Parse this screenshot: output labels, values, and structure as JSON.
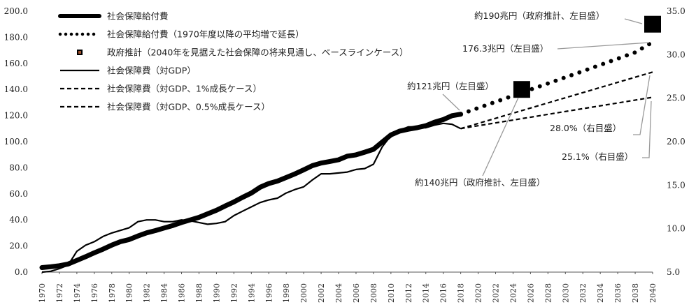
{
  "chart_data": {
    "type": "line",
    "x_range": [
      1970,
      2040
    ],
    "x_ticks": [
      "1970",
      "1972",
      "1974",
      "1976",
      "1978",
      "1980",
      "1982",
      "1984",
      "1986",
      "1988",
      "1990",
      "1992",
      "1994",
      "1996",
      "1998",
      "2000",
      "2002",
      "2004",
      "2006",
      "2008",
      "2010",
      "2012",
      "2014",
      "2016",
      "2018",
      "2020",
      "2022",
      "2024",
      "2026",
      "2028",
      "2030",
      "2032",
      "2034",
      "2036",
      "2038",
      "2040"
    ],
    "y_left": {
      "range": [
        0,
        200
      ],
      "ticks": [
        "0.0",
        "20.0",
        "40.0",
        "60.0",
        "80.0",
        "100.0",
        "120.0",
        "140.0",
        "160.0",
        "180.0",
        "200.0"
      ]
    },
    "y_right": {
      "range": [
        5,
        35
      ],
      "ticks": [
        "5.0",
        "10.0",
        "15.0",
        "20.0",
        "25.0",
        "30.0",
        "35.0"
      ]
    },
    "legend_position": "top-left",
    "series": [
      {
        "name": "社会保障給付費",
        "axis": "left",
        "style": "thick-solid",
        "x": [
          1970,
          1971,
          1972,
          1973,
          1974,
          1975,
          1976,
          1977,
          1978,
          1979,
          1980,
          1981,
          1982,
          1983,
          1984,
          1985,
          1986,
          1987,
          1988,
          1989,
          1990,
          1991,
          1992,
          1993,
          1994,
          1995,
          1996,
          1997,
          1998,
          1999,
          2000,
          2001,
          2002,
          2003,
          2004,
          2005,
          2006,
          2007,
          2008,
          2009,
          2010,
          2011,
          2012,
          2013,
          2014,
          2015,
          2016,
          2017,
          2018
        ],
        "y": [
          3.5,
          4.1,
          4.9,
          6.2,
          9.0,
          11.8,
          14.8,
          17.6,
          20.7,
          23.3,
          25.0,
          27.7,
          30.1,
          31.8,
          33.8,
          35.7,
          38.0,
          40.0,
          42.0,
          44.7,
          47.4,
          50.7,
          53.8,
          57.3,
          60.6,
          65.0,
          67.9,
          69.8,
          72.5,
          75.3,
          78.4,
          81.6,
          83.6,
          84.8,
          86.1,
          88.9,
          89.9,
          91.9,
          94.1,
          99.7,
          105.2,
          108.1,
          109.5,
          110.7,
          112.2,
          114.9,
          116.9,
          119.9,
          121.0
        ]
      },
      {
        "name": "社会保障給付費（1970年度以降の平均増で延長）",
        "axis": "left",
        "style": "dotted-large",
        "x": [
          2018,
          2020,
          2022,
          2024,
          2026,
          2028,
          2030,
          2032,
          2034,
          2036,
          2038,
          2040
        ],
        "y": [
          121.0,
          125.8,
          130.5,
          135.2,
          139.9,
          144.6,
          149.3,
          154.0,
          158.8,
          163.6,
          168.4,
          176.3
        ]
      },
      {
        "name": "社会保障費（対GDP）",
        "axis": "right",
        "style": "thin-solid",
        "x": [
          1970,
          1971,
          1972,
          1973,
          1974,
          1975,
          1976,
          1977,
          1978,
          1979,
          1980,
          1981,
          1982,
          1983,
          1984,
          1985,
          1986,
          1987,
          1988,
          1989,
          1990,
          1991,
          1992,
          1993,
          1994,
          1995,
          1996,
          1997,
          1998,
          1999,
          2000,
          2001,
          2002,
          2003,
          2004,
          2005,
          2006,
          2007,
          2008,
          2009,
          2010,
          2011,
          2012,
          2013,
          2014,
          2015,
          2016,
          2017,
          2018
        ],
        "y": [
          5.0,
          5.1,
          5.4,
          5.8,
          7.4,
          8.1,
          8.5,
          9.1,
          9.5,
          9.8,
          10.1,
          10.8,
          11.0,
          11.0,
          10.8,
          10.8,
          11.0,
          10.9,
          10.7,
          10.5,
          10.6,
          10.8,
          11.5,
          12.0,
          12.5,
          13.0,
          13.3,
          13.5,
          14.1,
          14.5,
          14.8,
          15.6,
          16.3,
          16.3,
          16.4,
          16.5,
          16.8,
          16.9,
          17.4,
          19.4,
          20.7,
          21.3,
          21.7,
          21.7,
          21.6,
          21.9,
          22.1,
          22.0,
          21.5
        ]
      },
      {
        "name": "社会保障費（対GDP、1%成長ケース）",
        "axis": "right",
        "style": "dashed",
        "x": [
          2018,
          2040
        ],
        "y": [
          21.5,
          28.0
        ]
      },
      {
        "name": "社会保障費（対GDP、0.5%成長ケース）",
        "axis": "right",
        "style": "dashed",
        "x": [
          2018,
          2040
        ],
        "y": [
          21.5,
          25.1
        ]
      }
    ],
    "markers": [
      {
        "name": "政府推計（2040年を見据えた社会保障の将来見通し、ベースラインケース）",
        "axis": "left",
        "points": [
          {
            "x": 2025,
            "y": 140.0
          },
          {
            "x": 2040,
            "y": 190.0
          }
        ]
      }
    ],
    "annotations": [
      {
        "id": "a190",
        "text": "約190兆円（政府推計、左目盛）",
        "x": 2040,
        "y": 190.0,
        "axis": "left"
      },
      {
        "id": "a176",
        "text": "176.3兆円（左目盛）",
        "x": 2040,
        "y": 176.3,
        "axis": "left"
      },
      {
        "id": "a121",
        "text": "約121兆円（左目盛）",
        "x": 2018,
        "y": 121.0,
        "axis": "left"
      },
      {
        "id": "a140",
        "text": "約140兆円（政府推計、左目盛）",
        "x": 2025,
        "y": 140.0,
        "axis": "left"
      },
      {
        "id": "a280",
        "text": "28.0%（右目盛）",
        "x": 2040,
        "y": 28.0,
        "axis": "right"
      },
      {
        "id": "a251",
        "text": "25.1%（右目盛）",
        "x": 2040,
        "y": 25.1,
        "axis": "right"
      }
    ]
  }
}
